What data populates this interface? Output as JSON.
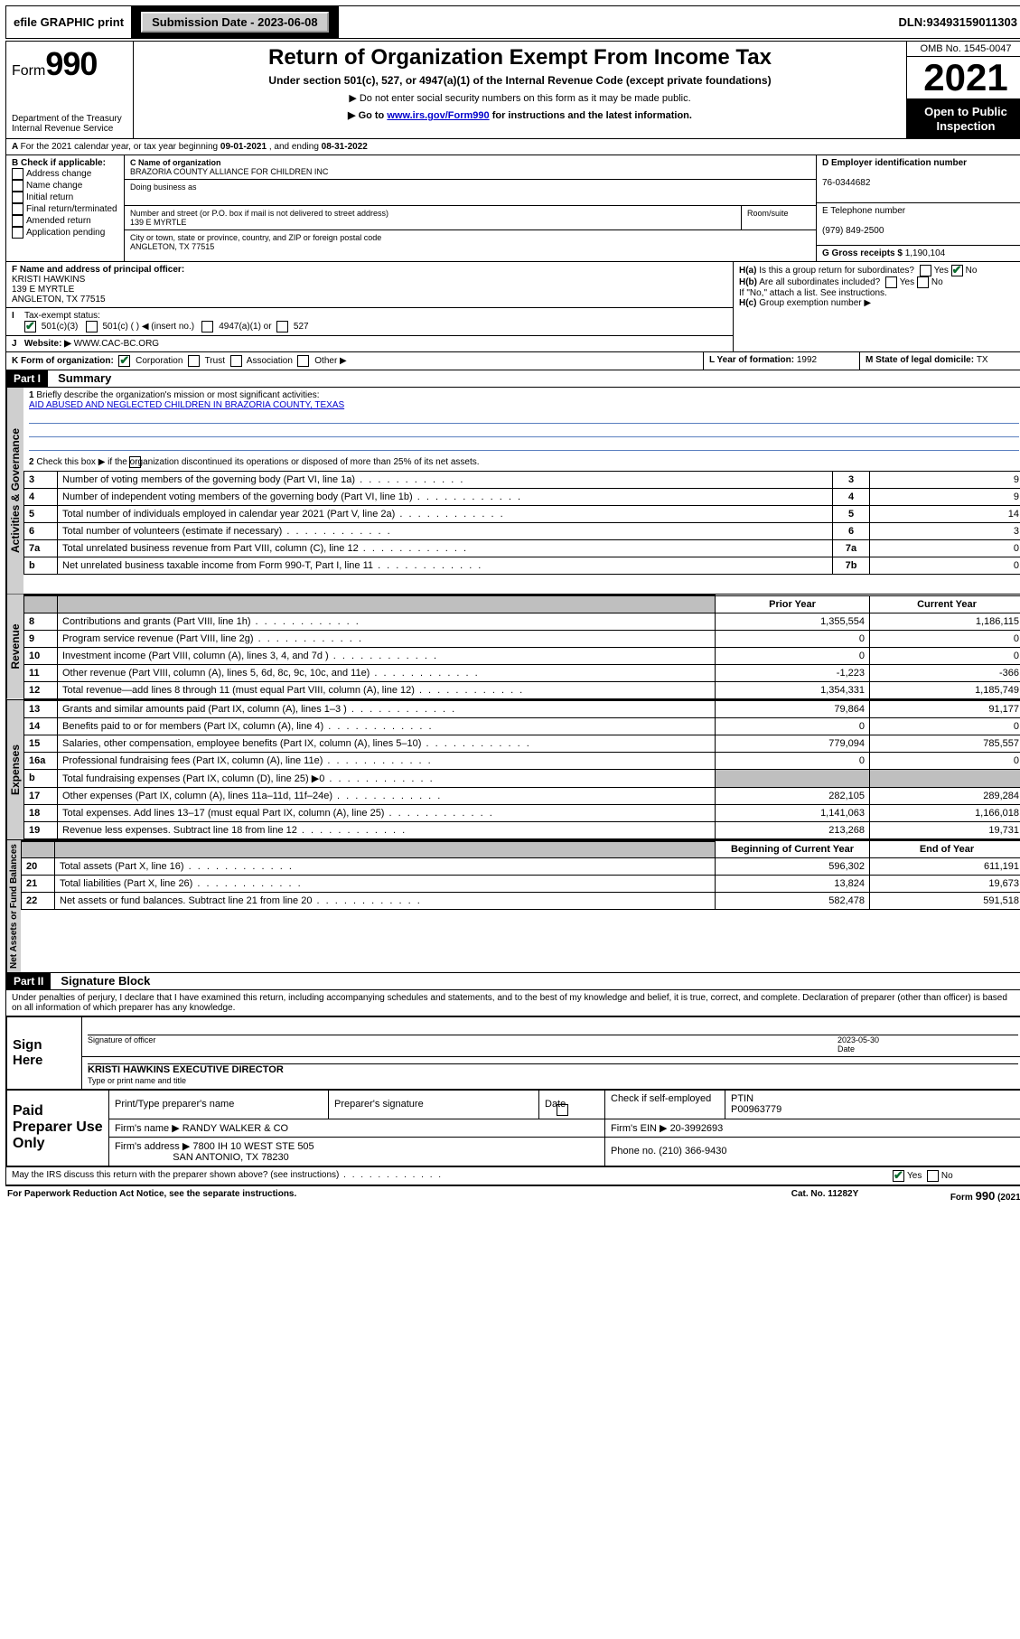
{
  "topbar": {
    "efile": "efile GRAPHIC print",
    "submission_label": "Submission Date - ",
    "submission_date": "2023-06-08",
    "dln_label": "DLN: ",
    "dln": "93493159011303"
  },
  "title": {
    "form_label": "Form",
    "form_no": "990",
    "dept": "Department of the Treasury",
    "irs": "Internal Revenue Service",
    "main": "Return of Organization Exempt From Income Tax",
    "sub1": "Under section 501(c), 527, or 4947(a)(1) of the Internal Revenue Code (except private foundations)",
    "sub2a": "▶ Do not enter social security numbers on this form as it may be made public.",
    "sub2b_pre": "▶ Go to ",
    "sub2b_link": "www.irs.gov/Form990",
    "sub2b_post": " for instructions and the latest information.",
    "omb": "OMB No. 1545-0047",
    "year": "2021",
    "openpub": "Open to Public Inspection"
  },
  "lineA": {
    "text_a": "For the 2021 calendar year, or tax year beginning ",
    "begin": "09-01-2021",
    "mid": " , and ending ",
    "end": "08-31-2022"
  },
  "boxB": {
    "label": "B Check if applicable:",
    "items": [
      "Address change",
      "Name change",
      "Initial return",
      "Final return/terminated",
      "Amended return",
      "Application pending"
    ]
  },
  "boxC": {
    "label": "C Name of organization",
    "name": "BRAZORIA COUNTY ALLIANCE FOR CHILDREN INC",
    "dba_label": "Doing business as",
    "dba": "",
    "street_label": "Number and street (or P.O. box if mail is not delivered to street address)",
    "room_label": "Room/suite",
    "street": "139 E MYRTLE",
    "city_label": "City or town, state or province, country, and ZIP or foreign postal code",
    "city": "ANGLETON, TX  77515"
  },
  "boxD": {
    "label": "D Employer identification number",
    "value": "76-0344682"
  },
  "boxE": {
    "label": "E Telephone number",
    "value": "(979) 849-2500"
  },
  "boxG": {
    "label": "G Gross receipts $ ",
    "value": "1,190,104"
  },
  "boxF": {
    "label": "F Name and address of principal officer:",
    "name": "KRISTI HAWKINS",
    "street": "139 E MYRTLE",
    "city": "ANGLETON, TX  77515"
  },
  "boxH": {
    "ha": "Is this a group return for subordinates?",
    "hb": "Are all subordinates included?",
    "hnote": "If \"No,\" attach a list. See instructions.",
    "hc": "Group exemption number ▶",
    "yes": "Yes",
    "no": "No"
  },
  "lineI": {
    "label": "Tax-exempt status:",
    "c3": "501(c)(3)",
    "c_blank": "501(c) (   ) ◀ (insert no.)",
    "a1": "4947(a)(1) or",
    "s527": "527"
  },
  "lineJ": {
    "label": "Website: ▶",
    "value": "WWW.CAC-BC.ORG"
  },
  "lineK": {
    "label": "K Form of organization:",
    "opts": [
      "Corporation",
      "Trust",
      "Association",
      "Other ▶"
    ]
  },
  "lineL": {
    "label": "L Year of formation: ",
    "value": "1992"
  },
  "lineM": {
    "label": "M State of legal domicile: ",
    "value": "TX"
  },
  "part1": {
    "bar": "Part I",
    "title": "Summary"
  },
  "summary": {
    "q1": "Briefly describe the organization's mission or most significant activities:",
    "mission": "AID ABUSED AND NEGLECTED CHILDREN IN BRAZORIA COUNTY, TEXAS",
    "q2": "Check this box ▶        if the organization discontinued its operations or disposed of more than 25% of its net assets.",
    "rows_gov": [
      {
        "n": "3",
        "t": "Number of voting members of the governing body (Part VI, line 1a)",
        "box": "3",
        "v": "9"
      },
      {
        "n": "4",
        "t": "Number of independent voting members of the governing body (Part VI, line 1b)",
        "box": "4",
        "v": "9"
      },
      {
        "n": "5",
        "t": "Total number of individuals employed in calendar year 2021 (Part V, line 2a)",
        "box": "5",
        "v": "14"
      },
      {
        "n": "6",
        "t": "Total number of volunteers (estimate if necessary)",
        "box": "6",
        "v": "3"
      },
      {
        "n": "7a",
        "t": "Total unrelated business revenue from Part VIII, column (C), line 12",
        "box": "7a",
        "v": "0"
      },
      {
        "n": "b",
        "t": "Net unrelated business taxable income from Form 990-T, Part I, line 11",
        "box": "7b",
        "v": "0"
      }
    ],
    "hdr_prior": "Prior Year",
    "hdr_curr": "Current Year",
    "rows_rev": [
      {
        "n": "8",
        "t": "Contributions and grants (Part VIII, line 1h)",
        "p": "1,355,554",
        "c": "1,186,115"
      },
      {
        "n": "9",
        "t": "Program service revenue (Part VIII, line 2g)",
        "p": "0",
        "c": "0"
      },
      {
        "n": "10",
        "t": "Investment income (Part VIII, column (A), lines 3, 4, and 7d )",
        "p": "0",
        "c": "0"
      },
      {
        "n": "11",
        "t": "Other revenue (Part VIII, column (A), lines 5, 6d, 8c, 9c, 10c, and 11e)",
        "p": "-1,223",
        "c": "-366"
      },
      {
        "n": "12",
        "t": "Total revenue—add lines 8 through 11 (must equal Part VIII, column (A), line 12)",
        "p": "1,354,331",
        "c": "1,185,749"
      }
    ],
    "rows_exp": [
      {
        "n": "13",
        "t": "Grants and similar amounts paid (Part IX, column (A), lines 1–3 )",
        "p": "79,864",
        "c": "91,177"
      },
      {
        "n": "14",
        "t": "Benefits paid to or for members (Part IX, column (A), line 4)",
        "p": "0",
        "c": "0"
      },
      {
        "n": "15",
        "t": "Salaries, other compensation, employee benefits (Part IX, column (A), lines 5–10)",
        "p": "779,094",
        "c": "785,557"
      },
      {
        "n": "16a",
        "t": "Professional fundraising fees (Part IX, column (A), line 11e)",
        "p": "0",
        "c": "0"
      },
      {
        "n": "b",
        "t": "Total fundraising expenses (Part IX, column (D), line 25) ▶0",
        "p": "",
        "c": "",
        "shade": true
      },
      {
        "n": "17",
        "t": "Other expenses (Part IX, column (A), lines 11a–11d, 11f–24e)",
        "p": "282,105",
        "c": "289,284"
      },
      {
        "n": "18",
        "t": "Total expenses. Add lines 13–17 (must equal Part IX, column (A), line 25)",
        "p": "1,141,063",
        "c": "1,166,018"
      },
      {
        "n": "19",
        "t": "Revenue less expenses. Subtract line 18 from line 12",
        "p": "213,268",
        "c": "19,731"
      }
    ],
    "hdr_begin": "Beginning of Current Year",
    "hdr_end": "End of Year",
    "rows_net": [
      {
        "n": "20",
        "t": "Total assets (Part X, line 16)",
        "p": "596,302",
        "c": "611,191"
      },
      {
        "n": "21",
        "t": "Total liabilities (Part X, line 26)",
        "p": "13,824",
        "c": "19,673"
      },
      {
        "n": "22",
        "t": "Net assets or fund balances. Subtract line 21 from line 20",
        "p": "582,478",
        "c": "591,518"
      }
    ],
    "vtab_gov": "Activities & Governance",
    "vtab_rev": "Revenue",
    "vtab_exp": "Expenses",
    "vtab_net": "Net Assets or Fund Balances"
  },
  "part2": {
    "bar": "Part II",
    "title": "Signature Block"
  },
  "sig": {
    "perjury": "Under penalties of perjury, I declare that I have examined this return, including accompanying schedules and statements, and to the best of my knowledge and belief, it is true, correct, and complete. Declaration of preparer (other than officer) is based on all information of which preparer has any knowledge.",
    "sign_here": "Sign Here",
    "sig_officer": "Signature of officer",
    "date_label": "Date",
    "sig_date": "2023-05-30",
    "officer_name": "KRISTI HAWKINS  EXECUTIVE DIRECTOR",
    "type_name": "Type or print name and title",
    "paid": "Paid Preparer Use Only",
    "prep_name_lbl": "Print/Type preparer's name",
    "prep_sig_lbl": "Preparer's signature",
    "check_se": "Check        if self-employed",
    "ptin_lbl": "PTIN",
    "ptin": "P00963779",
    "firm_lbl": "Firm's name   ▶",
    "firm": "RANDY WALKER & CO",
    "firm_ein_lbl": "Firm's EIN ▶",
    "firm_ein": "20-3992693",
    "firm_addr_lbl": "Firm's address ▶",
    "firm_addr1": "7800 IH 10 WEST STE 505",
    "firm_addr2": "SAN ANTONIO, TX  78230",
    "phone_lbl": "Phone no. ",
    "phone": "(210) 366-9430",
    "discuss": "May the IRS discuss this return with the preparer shown above? (see instructions)",
    "paperwork": "For Paperwork Reduction Act Notice, see the separate instructions.",
    "catno": "Cat. No. 11282Y",
    "formfoot": "Form 990 (2021)"
  }
}
